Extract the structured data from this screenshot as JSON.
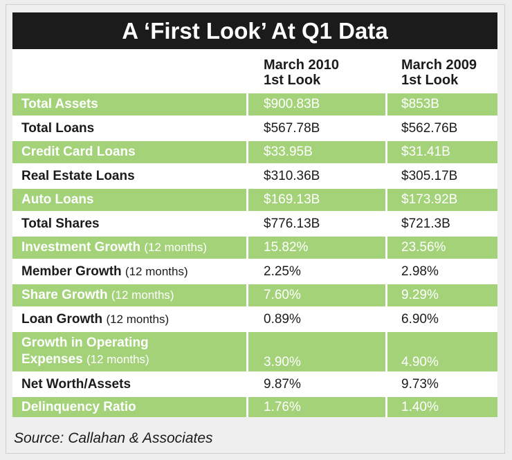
{
  "title": "A ‘First Look’ At Q1 Data",
  "columns": [
    {
      "line1": "March 2010",
      "line2": "1st Look"
    },
    {
      "line1": "March 2009",
      "line2": "1st Look"
    }
  ],
  "rows": [
    {
      "label": "Total Assets",
      "unit": "",
      "v2010": "$900.83B",
      "v2009": "$853B"
    },
    {
      "label": "Total Loans",
      "unit": "",
      "v2010": "$567.78B",
      "v2009": "$562.76B"
    },
    {
      "label": "Credit Card Loans",
      "unit": "",
      "v2010": "$33.95B",
      "v2009": "$31.41B"
    },
    {
      "label": "Real Estate Loans",
      "unit": "",
      "v2010": "$310.36B",
      "v2009": "$305.17B"
    },
    {
      "label": "Auto Loans",
      "unit": "",
      "v2010": "$169.13B",
      "v2009": "$173.92B"
    },
    {
      "label": "Total Shares",
      "unit": "",
      "v2010": "$776.13B",
      "v2009": "$721.3B"
    },
    {
      "label": "Investment Growth",
      "unit": "(12 months)",
      "v2010": "15.82%",
      "v2009": "23.56%"
    },
    {
      "label": "Member Growth",
      "unit": "(12 months)",
      "v2010": "2.25%",
      "v2009": "2.98%"
    },
    {
      "label": "Share Growth",
      "unit": "(12 months)",
      "v2010": "7.60%",
      "v2009": "9.29%"
    },
    {
      "label": "Loan Growth",
      "unit": "(12 months)",
      "v2010": "0.89%",
      "v2009": "6.90%"
    },
    {
      "label_line1": "Growth in Operating",
      "label_line2": "Expenses",
      "unit": "(12 months)",
      "v2010": "3.90%",
      "v2009": "4.90%"
    },
    {
      "label": "Net Worth/Assets",
      "unit": "",
      "v2010": "9.87%",
      "v2009": "9.73%"
    },
    {
      "label": "Delinquency Ratio",
      "unit": "",
      "v2010": "1.76%",
      "v2009": "1.40%"
    }
  ],
  "source": "Source: Callahan & Associates"
}
